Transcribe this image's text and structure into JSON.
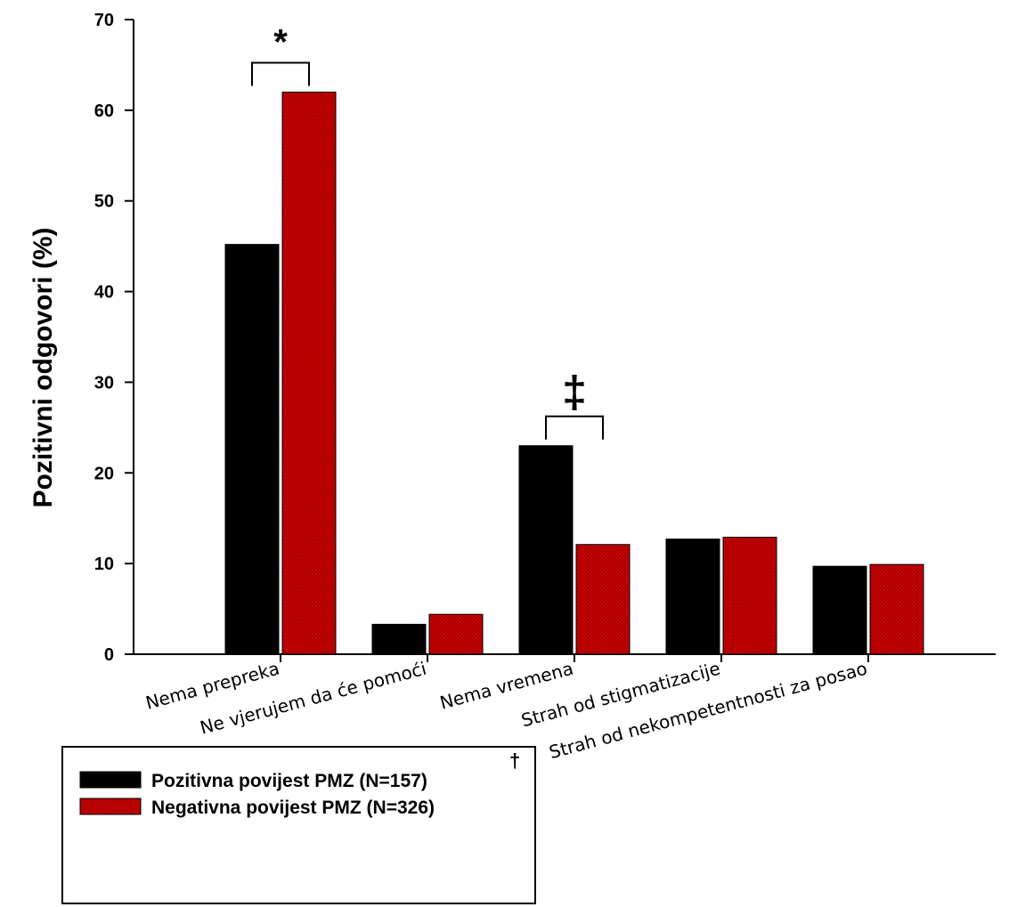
{
  "chart_data": {
    "type": "bar",
    "categories": [
      "Nema prepreka",
      "Ne vjerujem da će pomoći",
      "Nema vremena",
      "Strah od stigmatizacije",
      "Strah od nekompetentnosti za posao"
    ],
    "series": [
      {
        "name": "Pozitivna povijest PMZ (N=157)",
        "values": [
          45.2,
          3.3,
          23.0,
          12.7,
          9.7
        ],
        "color": "#000000"
      },
      {
        "name": "Negativna povijest PMZ (N=326)",
        "values": [
          62.0,
          4.4,
          12.1,
          12.9,
          9.9
        ],
        "color": "#c00000"
      }
    ],
    "xlabel": "",
    "ylabel": "Pozitivni odgovori (%)",
    "ylim": [
      0,
      70
    ],
    "yticks": [
      0,
      10,
      20,
      30,
      40,
      50,
      60,
      70
    ],
    "grid": false,
    "legend_position": "bottom-left",
    "legend_superscript": "†",
    "annotations": [
      {
        "category_index": 0,
        "symbol": "*"
      },
      {
        "category_index": 2,
        "symbol": "‡"
      }
    ]
  }
}
